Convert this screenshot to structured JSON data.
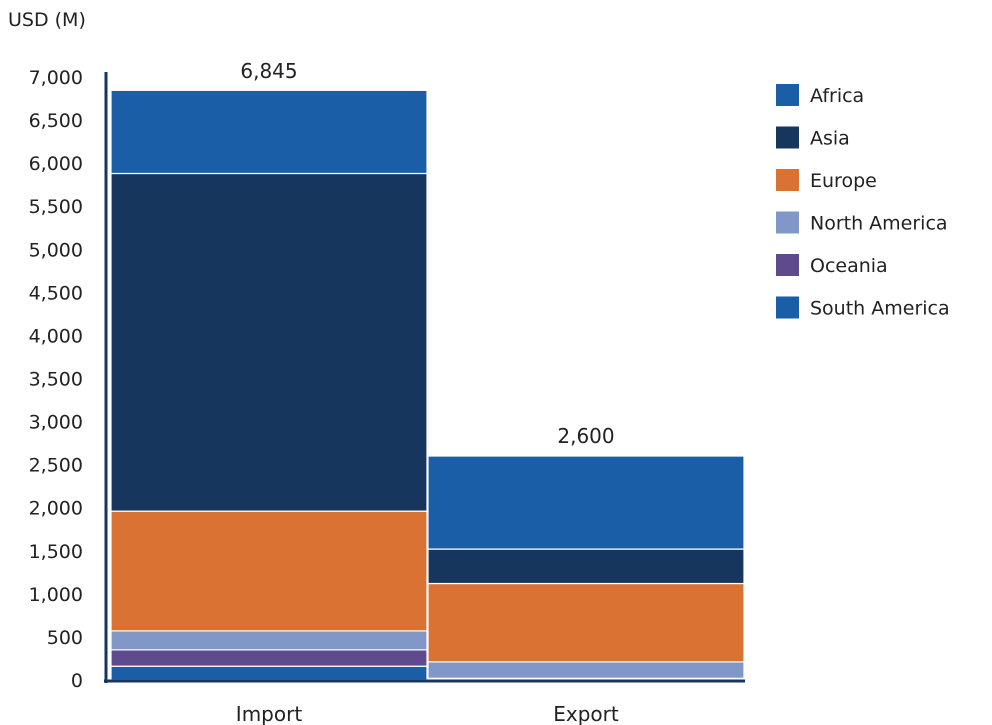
{
  "chart_data": {
    "type": "bar",
    "stacked": true,
    "y_unit_label": "USD (M)",
    "categories": [
      "Import",
      "Export"
    ],
    "totals": [
      "6,845",
      "2,600"
    ],
    "ylim": [
      0,
      7000
    ],
    "yticks": [
      0,
      500,
      1000,
      1500,
      2000,
      2500,
      3000,
      3500,
      4000,
      4500,
      5000,
      5500,
      6000,
      6500,
      7000
    ],
    "ytick_labels": [
      "0",
      "500",
      "1,000",
      "1,500",
      "2,000",
      "2,500",
      "3,000",
      "3,500",
      "4,000",
      "4,500",
      "5,000",
      "5,500",
      "6,000",
      "6,500",
      "7,000"
    ],
    "grid": false,
    "legend_position": "right",
    "stack_order_bottom_to_top": [
      "South America",
      "Oceania",
      "North America",
      "Europe",
      "Asia",
      "Africa"
    ],
    "series": [
      {
        "name": "Africa",
        "color": "#1a5ea8",
        "values": [
          965,
          1080
        ]
      },
      {
        "name": "Asia",
        "color": "#17365d",
        "values": [
          3920,
          400
        ]
      },
      {
        "name": "Europe",
        "color": "#d97232",
        "values": [
          1390,
          910
        ]
      },
      {
        "name": "North America",
        "color": "#8197c8",
        "values": [
          220,
          190
        ]
      },
      {
        "name": "Oceania",
        "color": "#5e4a8c",
        "values": [
          190,
          10
        ]
      },
      {
        "name": "South America",
        "color": "#1a5ea8",
        "values": [
          160,
          10
        ]
      }
    ]
  }
}
